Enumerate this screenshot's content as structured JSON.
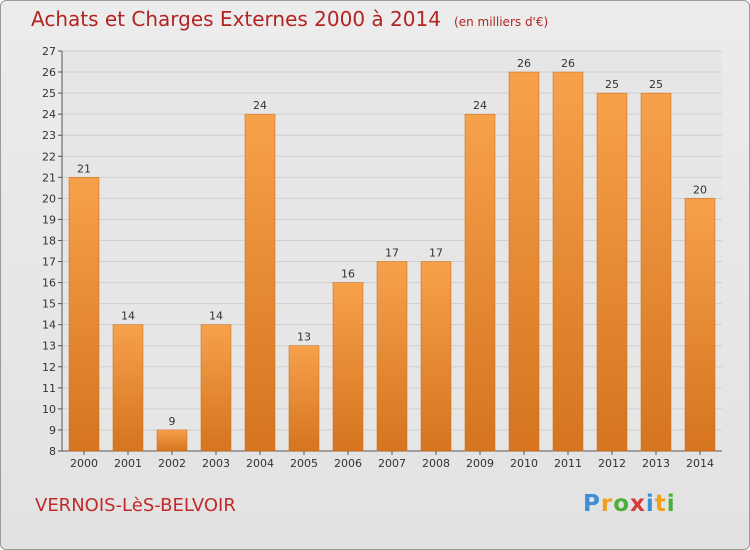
{
  "header": {
    "title": "Achats et Charges Externes 2000 à 2014",
    "unit": "(en milliers d'€)"
  },
  "footer": {
    "place": "VERNOIS-LèS-BELVOIR",
    "logo": "Proxiti"
  },
  "colors": {
    "bar_top": "#f6a14a",
    "bar_bottom": "#d6741f",
    "title": "#b22424",
    "grid": "#cfcfcf"
  },
  "chart_data": {
    "type": "bar",
    "title": "Achats et Charges Externes 2000 à 2014",
    "subtitle": "(en milliers d'€)",
    "categories": [
      "2000",
      "2001",
      "2002",
      "2003",
      "2004",
      "2005",
      "2006",
      "2007",
      "2008",
      "2009",
      "2010",
      "2011",
      "2012",
      "2013",
      "2014"
    ],
    "values": [
      21,
      14,
      9,
      14,
      24,
      13,
      16,
      17,
      17,
      24,
      26,
      26,
      25,
      25,
      20
    ],
    "ylim": [
      8,
      27
    ],
    "yticks": [
      8,
      9,
      10,
      11,
      12,
      13,
      14,
      15,
      16,
      17,
      18,
      19,
      20,
      21,
      22,
      23,
      24,
      25,
      26,
      27
    ],
    "grid": true,
    "legend": "none"
  }
}
